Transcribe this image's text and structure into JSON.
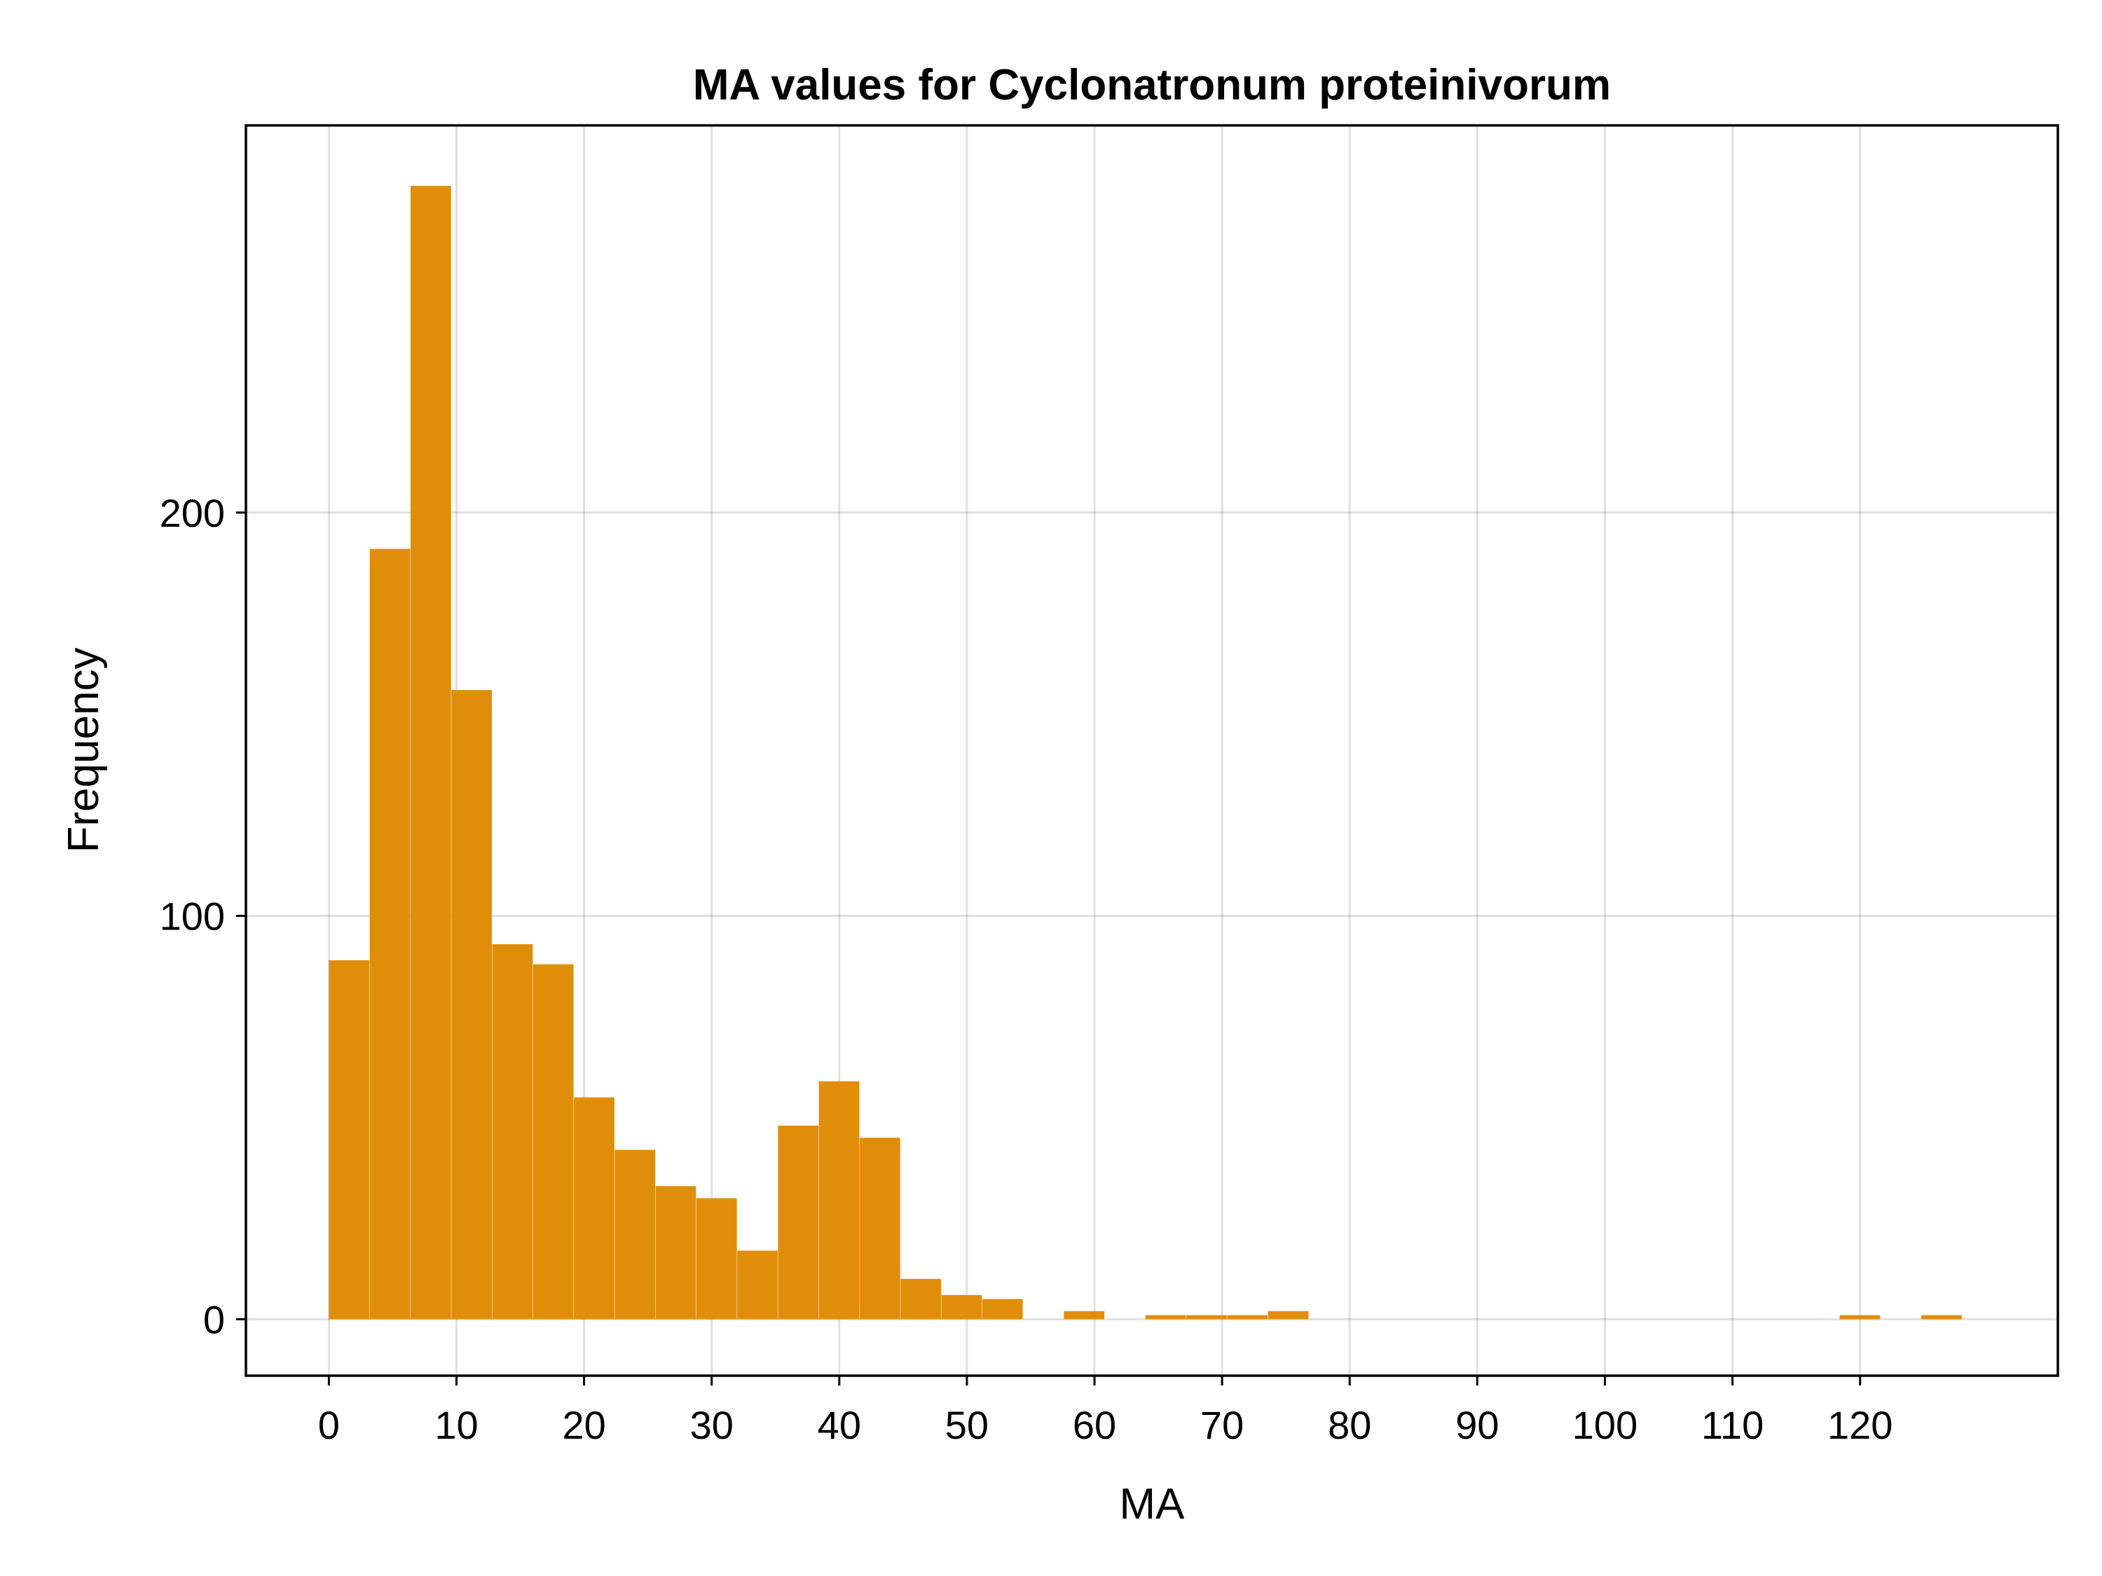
{
  "chart_data": {
    "type": "bar",
    "title": "MA values for Cyclonatronum proteinivorum",
    "xlabel": "MA",
    "ylabel": "Frequency",
    "bin_width": 3.2,
    "bin_start": 0,
    "values": [
      89,
      191,
      281,
      156,
      93,
      88,
      55,
      42,
      33,
      30,
      17,
      48,
      59,
      45,
      10,
      6,
      5,
      0,
      2,
      0,
      1,
      1,
      1,
      2,
      0,
      0,
      0,
      0,
      0,
      0,
      0,
      0,
      0,
      0,
      0,
      0,
      0,
      1,
      0,
      1
    ],
    "xlim": [
      -6.5,
      135.5
    ],
    "ylim": [
      -14,
      296
    ],
    "xticks": [
      0,
      10,
      20,
      30,
      40,
      50,
      60,
      70,
      80,
      90,
      100,
      110,
      120
    ],
    "xtick_labels": [
      "0",
      "10",
      "20",
      "30",
      "40",
      "50",
      "60",
      "70",
      "80",
      "90",
      "100",
      "110",
      "120"
    ],
    "yticks": [
      0,
      100,
      200
    ],
    "ytick_labels": [
      "0",
      "100",
      "200"
    ],
    "bar_color": "#E08E0A",
    "grid": true
  }
}
